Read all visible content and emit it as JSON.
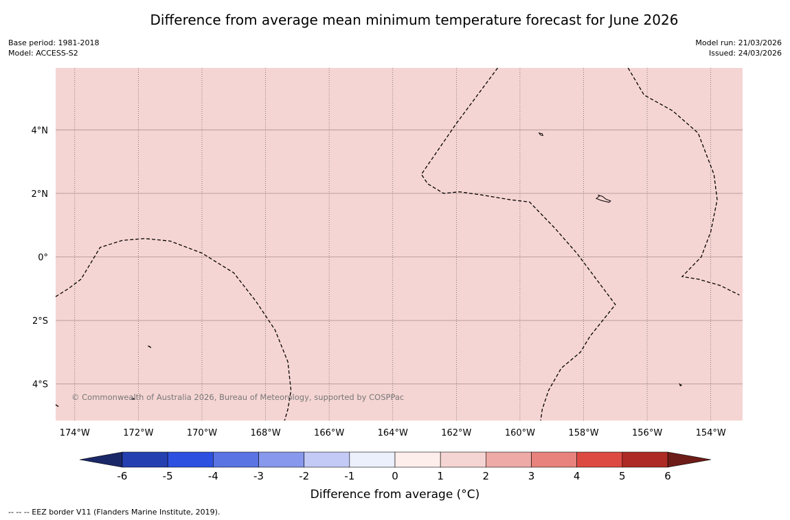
{
  "title": "Difference from average mean minimum temperature forecast for June 2026",
  "meta_left": {
    "base_period": "Base period: 1981-2018",
    "model": "Model: ACCESS-S2"
  },
  "meta_right": {
    "model_run": "Model run: 21/03/2026",
    "issued": "Issued: 24/03/2026"
  },
  "map": {
    "extent": {
      "lon_min": -174.6,
      "lon_max": -153.0,
      "lat_min": -5.15,
      "lat_max": 5.95
    },
    "background_color": "#f5d5d3",
    "lat_ticks": [
      {
        "value": 4,
        "label": "4°N"
      },
      {
        "value": 2,
        "label": "2°N"
      },
      {
        "value": 0,
        "label": "0°"
      },
      {
        "value": -2,
        "label": "2°S"
      },
      {
        "value": -4,
        "label": "4°S"
      }
    ],
    "lon_ticks": [
      {
        "value": -174,
        "label": "174°W"
      },
      {
        "value": -172,
        "label": "172°W"
      },
      {
        "value": -170,
        "label": "170°W"
      },
      {
        "value": -168,
        "label": "168°W"
      },
      {
        "value": -166,
        "label": "166°W"
      },
      {
        "value": -164,
        "label": "164°W"
      },
      {
        "value": -162,
        "label": "162°W"
      },
      {
        "value": -160,
        "label": "160°W"
      },
      {
        "value": -158,
        "label": "158°W"
      },
      {
        "value": -156,
        "label": "156°W"
      },
      {
        "value": -154,
        "label": "154°W"
      }
    ],
    "eez_borders": [
      {
        "name": "eez-border-west",
        "points": [
          [
            -174.6,
            -1.25
          ],
          [
            -174.2,
            -1.0
          ],
          [
            -173.8,
            -0.7
          ],
          [
            -173.2,
            0.3
          ],
          [
            -172.5,
            0.52
          ],
          [
            -171.8,
            0.58
          ],
          [
            -171.0,
            0.5
          ],
          [
            -170.0,
            0.12
          ],
          [
            -169.0,
            -0.5
          ],
          [
            -168.3,
            -1.4
          ],
          [
            -167.7,
            -2.3
          ],
          [
            -167.3,
            -3.3
          ],
          [
            -167.2,
            -4.2
          ],
          [
            -167.3,
            -4.8
          ],
          [
            -167.4,
            -5.15
          ]
        ]
      },
      {
        "name": "eez-border-central",
        "points": [
          [
            -160.7,
            5.95
          ],
          [
            -162.0,
            4.2
          ],
          [
            -163.1,
            2.6
          ],
          [
            -162.9,
            2.3
          ],
          [
            -162.4,
            2.0
          ],
          [
            -161.9,
            2.05
          ],
          [
            -161.2,
            1.95
          ],
          [
            -160.3,
            1.8
          ],
          [
            -159.7,
            1.73
          ],
          [
            -158.9,
            0.9
          ],
          [
            -158.2,
            0.1
          ],
          [
            -157.0,
            -1.5
          ],
          [
            -157.8,
            -2.5
          ],
          [
            -158.1,
            -3.0
          ],
          [
            -158.7,
            -3.5
          ],
          [
            -159.1,
            -4.2
          ],
          [
            -159.3,
            -4.8
          ],
          [
            -159.35,
            -5.15
          ]
        ]
      },
      {
        "name": "eez-border-east",
        "points": [
          [
            -156.6,
            5.95
          ],
          [
            -156.1,
            5.1
          ],
          [
            -155.2,
            4.6
          ],
          [
            -154.4,
            3.9
          ],
          [
            -153.9,
            2.6
          ],
          [
            -153.8,
            1.8
          ],
          [
            -154.0,
            0.8
          ],
          [
            -154.3,
            0.0
          ],
          [
            -154.9,
            -0.62
          ],
          [
            -154.4,
            -0.7
          ],
          [
            -153.7,
            -0.9
          ],
          [
            -153.1,
            -1.2
          ]
        ]
      },
      {
        "name": "eez-border-fragment-sw",
        "points": [
          [
            -174.6,
            -4.65
          ],
          [
            -174.5,
            -4.72
          ]
        ]
      }
    ],
    "islands": [
      {
        "name": "island-christmas",
        "points": [
          [
            -157.55,
            1.95
          ],
          [
            -157.4,
            1.9
          ],
          [
            -157.3,
            1.82
          ],
          [
            -157.15,
            1.76
          ],
          [
            -157.2,
            1.72
          ],
          [
            -157.45,
            1.78
          ],
          [
            -157.6,
            1.84
          ],
          [
            -157.5,
            1.92
          ]
        ]
      },
      {
        "name": "island-fanning",
        "points": [
          [
            -159.4,
            3.9
          ],
          [
            -159.3,
            3.88
          ],
          [
            -159.28,
            3.82
          ],
          [
            -159.36,
            3.84
          ]
        ]
      },
      {
        "name": "island-sw-atoll",
        "points": [
          [
            -171.7,
            -2.8
          ],
          [
            -171.6,
            -2.86
          ],
          [
            -171.64,
            -2.82
          ]
        ]
      },
      {
        "name": "island-south",
        "points": [
          [
            -172.2,
            -4.45
          ],
          [
            -172.1,
            -4.47
          ],
          [
            -172.2,
            -4.49
          ]
        ]
      },
      {
        "name": "island-southeast",
        "points": [
          [
            -154.98,
            -4.0
          ],
          [
            -154.92,
            -4.04
          ],
          [
            -154.96,
            -4.06
          ]
        ]
      }
    ],
    "copyright": "© Commonwealth of Australia 2026, Bureau of Meteorology, supported by COSPPac"
  },
  "colorbar": {
    "boundaries": [
      -6,
      -5,
      -4,
      -3,
      -2,
      -1,
      0,
      1,
      2,
      3,
      4,
      5,
      6
    ],
    "tick_labels": [
      "-6",
      "-5",
      "-4",
      "-3",
      "-2",
      "-1",
      "0",
      "1",
      "2",
      "3",
      "4",
      "5",
      "6"
    ],
    "colors": [
      "#2440b0",
      "#2e50e0",
      "#5a74e4",
      "#8898ec",
      "#c4caf6",
      "#ecf0fc",
      "#fdeeec",
      "#f5d5d3",
      "#eeaaa6",
      "#e8827c",
      "#dc4a42",
      "#ae2a24"
    ],
    "extend_low_color": "#1b2868",
    "extend_high_color": "#6e1c18",
    "label": "Difference from average (°C)"
  },
  "footnote": "--  --  -- EEZ border V11 (Flanders Marine Institute, 2019)."
}
